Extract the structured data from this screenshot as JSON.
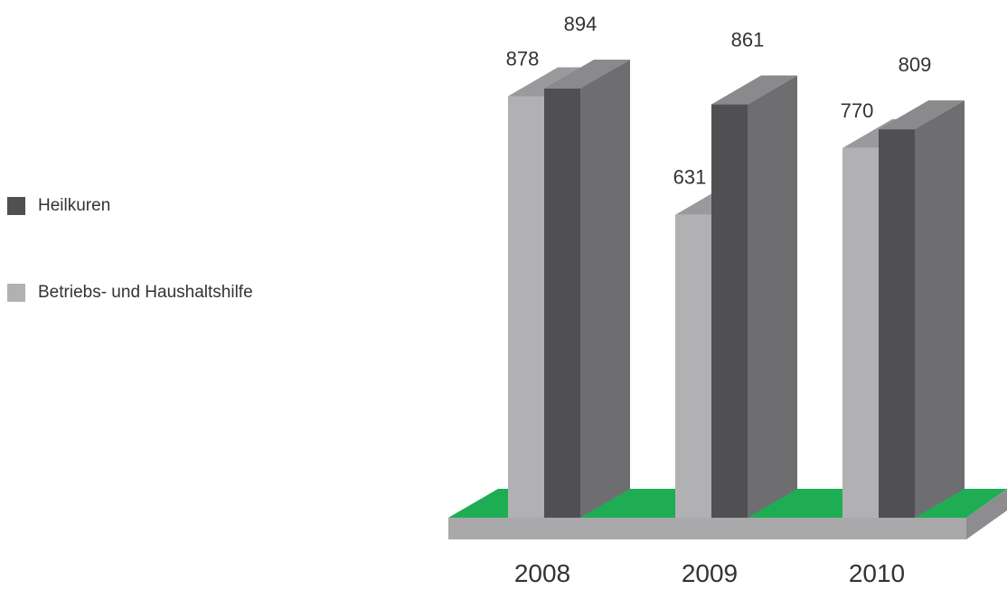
{
  "chart_data": {
    "type": "bar",
    "categories": [
      "2008",
      "2009",
      "2010"
    ],
    "series": [
      {
        "name": "Heilkuren",
        "values": [
          894,
          861,
          809
        ],
        "color": "#505052",
        "side_color": "#6e6e71",
        "top_color": "#8a8a8d"
      },
      {
        "name": "Betriebs- und Haushaltshilfe",
        "values": [
          878,
          631,
          770
        ],
        "color": "#b1b1b3",
        "side_color": "#a3a3a6",
        "top_color": "#9a9a9d"
      }
    ],
    "legend_position": "left",
    "grid": false,
    "floor_color": "#1fad54",
    "base_color": "#a9a9ab"
  }
}
